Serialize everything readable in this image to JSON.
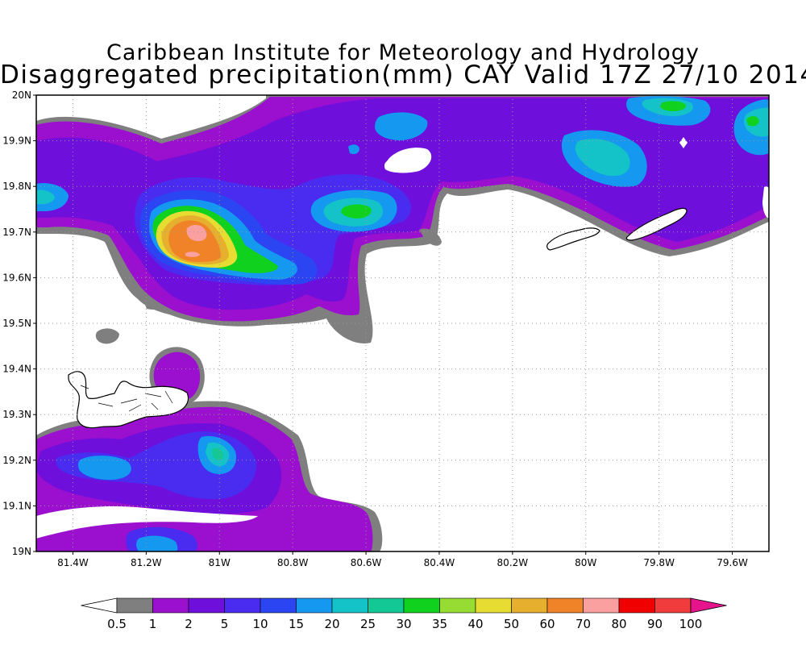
{
  "title": {
    "line1": "Caribbean Institute for Meteorology and Hydrology",
    "line2": "Disaggregated precipitation(mm) CAY Valid 17Z 27/10 2014"
  },
  "map": {
    "lon_range": [
      -81.5,
      -79.5
    ],
    "lat_range": [
      19.0,
      20.0
    ],
    "grid": "dotted",
    "lat_ticks": [
      {
        "value": 19.0,
        "label": "19N"
      },
      {
        "value": 19.1,
        "label": "19.1N"
      },
      {
        "value": 19.2,
        "label": "19.2N"
      },
      {
        "value": 19.3,
        "label": "19.3N"
      },
      {
        "value": 19.4,
        "label": "19.4N"
      },
      {
        "value": 19.5,
        "label": "19.5N"
      },
      {
        "value": 19.6,
        "label": "19.6N"
      },
      {
        "value": 19.7,
        "label": "19.7N"
      },
      {
        "value": 19.8,
        "label": "19.8N"
      },
      {
        "value": 19.9,
        "label": "19.9N"
      },
      {
        "value": 20.0,
        "label": "20N"
      }
    ],
    "lon_ticks": [
      {
        "value": -81.4,
        "label": "81.4W"
      },
      {
        "value": -81.2,
        "label": "81.2W"
      },
      {
        "value": -81.0,
        "label": "81W"
      },
      {
        "value": -80.8,
        "label": "80.8W"
      },
      {
        "value": -80.6,
        "label": "80.6W"
      },
      {
        "value": -80.4,
        "label": "80.4W"
      },
      {
        "value": -80.2,
        "label": "80.2W"
      },
      {
        "value": -80.0,
        "label": "80W"
      },
      {
        "value": -79.8,
        "label": "79.8W"
      },
      {
        "value": -79.6,
        "label": "79.6W"
      }
    ]
  },
  "colorbar": {
    "labels": [
      "0.5",
      "1",
      "2",
      "5",
      "10",
      "15",
      "20",
      "25",
      "30",
      "35",
      "40",
      "50",
      "60",
      "70",
      "80",
      "90",
      "100"
    ],
    "colors": [
      "#ffffff",
      "#7f7f7f",
      "#9b0fcf",
      "#6e0fdc",
      "#4a2cf0",
      "#2b45f2",
      "#1498f0",
      "#14c3c8",
      "#14c896",
      "#10d21e",
      "#96dc32",
      "#e6dc32",
      "#e6af2d",
      "#f08228",
      "#fba0a0",
      "#f00000",
      "#f03c3c",
      "#e6148c"
    ]
  },
  "precip_colors": {
    "c1": "#7f7f7f",
    "c2": "#9b0fcf",
    "c5": "#6e0fdc",
    "c10": "#4a2cf0",
    "c15": "#2b45f2",
    "c20": "#1498f0",
    "c25": "#14c3c8",
    "c30": "#14c896",
    "c35": "#10d21e",
    "c40": "#96dc32",
    "c50": "#e6dc32",
    "c60": "#e6af2d",
    "c70": "#f08228",
    "c80": "#fba0a0"
  }
}
